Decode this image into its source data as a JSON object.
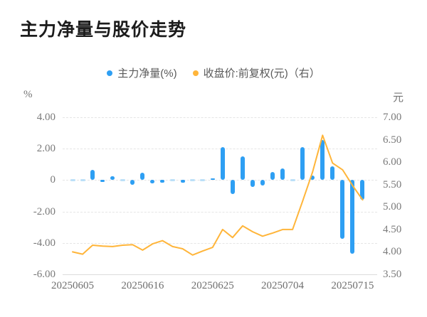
{
  "title": "主力净量与股价走势",
  "legend": [
    {
      "label": "主力净量(%)",
      "color": "#2E9FF3"
    },
    {
      "label": "收盘价:前复权(元)（右）",
      "color": "#FFB53A"
    }
  ],
  "axes": {
    "left_unit": "%",
    "right_unit": "元",
    "left_ticks": [
      "4.00",
      "2.00",
      "0",
      "-2.00",
      "-4.00",
      "-6.00"
    ],
    "right_ticks": [
      "7.00",
      "6.50",
      "6.00",
      "5.50",
      "5.00",
      "4.50",
      "4.00",
      "3.50"
    ],
    "x_ticks": [
      "20250605",
      "20250616",
      "20250625",
      "20250704",
      "20250715"
    ]
  },
  "chart_data": {
    "type": "bar+line",
    "title": "主力净量与股价走势",
    "n_points": 30,
    "x_tick_labels": [
      "20250605",
      "20250616",
      "20250625",
      "20250704",
      "20250715"
    ],
    "x_tick_indices": [
      0,
      7,
      14,
      21,
      28
    ],
    "left_axis": {
      "label": "%",
      "min": -6,
      "max": 4,
      "ticks": [
        4,
        2,
        0,
        -2,
        -4,
        -6
      ]
    },
    "right_axis": {
      "label": "元",
      "min": 3.5,
      "max": 7,
      "ticks": [
        7,
        6.5,
        6,
        5.5,
        5,
        4.5,
        4,
        3.5
      ]
    },
    "grid": "horizontal-dashed",
    "legend_position": "top-center",
    "series": [
      {
        "name": "主力净量(%)",
        "type": "bar",
        "axis": "left",
        "color": "#2E9FF3",
        "faint_color": "#BCE0F8",
        "values": [
          0.05,
          0.04,
          0.65,
          -0.1,
          0.25,
          0.05,
          -0.3,
          0.45,
          -0.2,
          -0.15,
          0.04,
          -0.15,
          0.05,
          0.04,
          0.12,
          2.1,
          -0.9,
          1.5,
          -0.45,
          -0.35,
          0.5,
          0.75,
          0.05,
          2.1,
          0.3,
          2.55,
          0.9,
          -3.75,
          -4.7,
          -1.25
        ]
      },
      {
        "name": "收盘价:前复权(元)",
        "type": "line",
        "axis": "right",
        "color": "#FFB53A",
        "values": [
          4.0,
          3.95,
          4.15,
          4.13,
          4.12,
          4.15,
          4.16,
          4.04,
          4.18,
          4.25,
          4.12,
          4.07,
          3.93,
          4.02,
          4.1,
          4.5,
          4.32,
          4.58,
          4.45,
          4.35,
          4.42,
          4.5,
          4.5,
          5.13,
          5.78,
          6.6,
          5.98,
          5.83,
          5.48,
          5.16
        ]
      }
    ]
  }
}
